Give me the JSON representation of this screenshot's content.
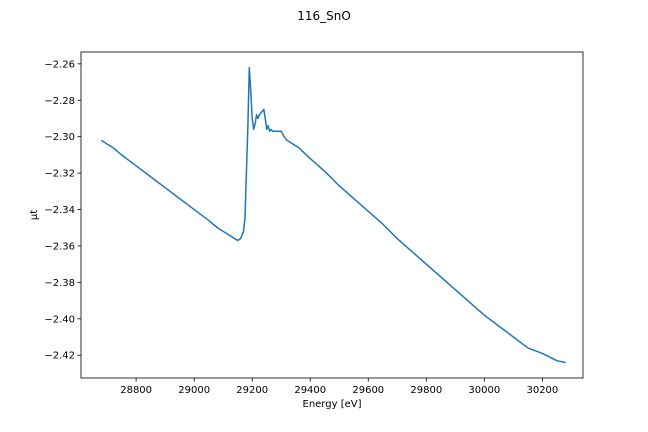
{
  "chart_data": {
    "type": "line",
    "title": "116_SnO",
    "xlabel": "Energy [eV]",
    "ylabel": "μt",
    "xlim": [
      28610,
      30340
    ],
    "ylim": [
      -2.4325,
      -2.2535
    ],
    "xticks": [
      28800,
      29000,
      29200,
      29400,
      29600,
      29800,
      30000,
      30200
    ],
    "yticks": [
      -2.26,
      -2.28,
      -2.3,
      -2.32,
      -2.34,
      -2.36,
      -2.38,
      -2.4,
      -2.42
    ],
    "xtick_labels": [
      "28800",
      "29000",
      "29200",
      "29400",
      "29600",
      "29800",
      "30000",
      "30200"
    ],
    "ytick_labels": [
      "−2.26",
      "−2.28",
      "−2.30",
      "−2.32",
      "−2.34",
      "−2.36",
      "−2.38",
      "−2.40",
      "−2.42"
    ],
    "grid": false,
    "series": [
      {
        "color": "#1f77b4",
        "x": [
          28680,
          28700,
          28720,
          28750,
          28800,
          28850,
          28900,
          28950,
          29000,
          29050,
          29080,
          29100,
          29120,
          29140,
          29150,
          29160,
          29170,
          29175,
          29180,
          29185,
          29190,
          29195,
          29200,
          29205,
          29210,
          29215,
          29220,
          29225,
          29230,
          29235,
          29240,
          29245,
          29250,
          29255,
          29260,
          29265,
          29270,
          29280,
          29290,
          29300,
          29310,
          29320,
          29330,
          29340,
          29360,
          29380,
          29400,
          29450,
          29500,
          29550,
          29600,
          29650,
          29700,
          29750,
          29800,
          29850,
          29900,
          29950,
          30000,
          30050,
          30100,
          30150,
          30200,
          30250,
          30280
        ],
        "y": [
          -2.302,
          -2.304,
          -2.306,
          -2.31,
          -2.316,
          -2.322,
          -2.328,
          -2.334,
          -2.34,
          -2.346,
          -2.35,
          -2.352,
          -2.354,
          -2.356,
          -2.357,
          -2.356,
          -2.352,
          -2.345,
          -2.32,
          -2.295,
          -2.262,
          -2.275,
          -2.29,
          -2.296,
          -2.293,
          -2.288,
          -2.29,
          -2.288,
          -2.287,
          -2.286,
          -2.285,
          -2.29,
          -2.296,
          -2.294,
          -2.297,
          -2.296,
          -2.297,
          -2.297,
          -2.297,
          -2.297,
          -2.3,
          -2.302,
          -2.303,
          -2.304,
          -2.306,
          -2.309,
          -2.312,
          -2.319,
          -2.327,
          -2.334,
          -2.341,
          -2.348,
          -2.356,
          -2.363,
          -2.37,
          -2.377,
          -2.384,
          -2.391,
          -2.398,
          -2.404,
          -2.41,
          -2.416,
          -2.419,
          -2.423,
          -2.424
        ]
      }
    ]
  }
}
